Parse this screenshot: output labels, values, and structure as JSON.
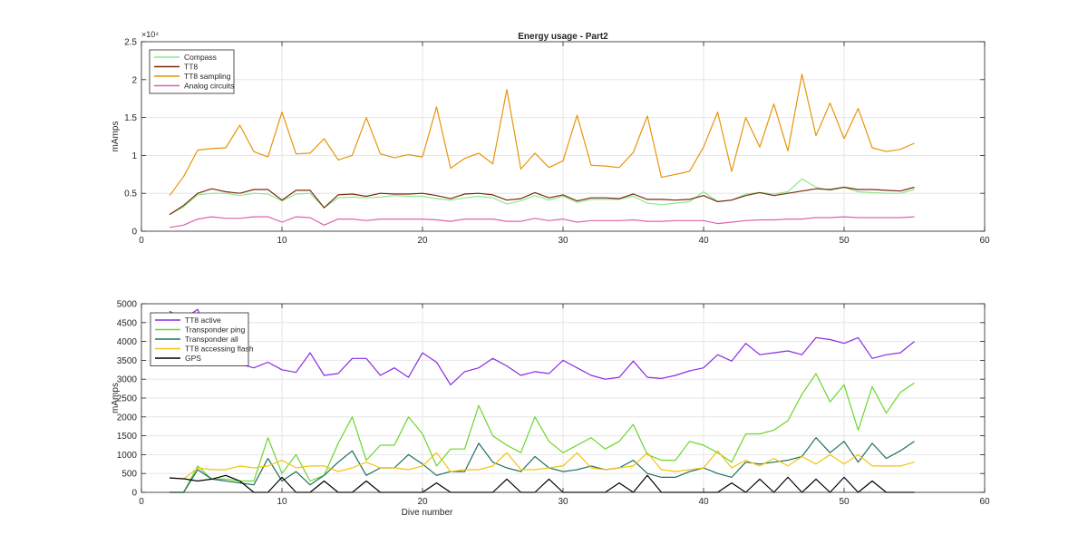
{
  "figure_title": "Energy usage - Part2",
  "chart_data": [
    {
      "type": "line",
      "title": "Energy usage - Part2",
      "xlabel": "",
      "ylabel": "mAmps",
      "xlim": [
        0,
        60
      ],
      "ylim": [
        0,
        25000
      ],
      "x_ticks": [
        0,
        10,
        20,
        30,
        40,
        50,
        60
      ],
      "y_ticks": [
        0,
        5000,
        10000,
        15000,
        20000,
        25000
      ],
      "y_tick_labels": [
        "0",
        "0.5",
        "1",
        "1.5",
        "2",
        "2.5"
      ],
      "y_exponent_label": "×10⁴",
      "grid": true,
      "legend_position": "top-left",
      "x": [
        2,
        3,
        4,
        5,
        6,
        7,
        8,
        9,
        10,
        11,
        12,
        13,
        14,
        15,
        16,
        17,
        18,
        19,
        20,
        21,
        22,
        23,
        24,
        25,
        26,
        27,
        28,
        29,
        30,
        31,
        32,
        33,
        34,
        35,
        36,
        37,
        38,
        39,
        40,
        41,
        42,
        43,
        44,
        45,
        46,
        47,
        48,
        49,
        50,
        51,
        52,
        53,
        54,
        55
      ],
      "series": [
        {
          "name": "Compass",
          "color": "#8ee88e",
          "values": [
            2200,
            3200,
            4800,
            5000,
            5000,
            4700,
            5000,
            4900,
            4000,
            4900,
            5000,
            3100,
            4400,
            4500,
            4400,
            4500,
            4700,
            4600,
            4600,
            4300,
            4100,
            4400,
            4600,
            4400,
            3600,
            4000,
            4700,
            4100,
            4600,
            3800,
            4200,
            4200,
            4200,
            4600,
            3700,
            3500,
            3700,
            3900,
            5200,
            3900,
            4100,
            4900,
            5100,
            4900,
            5200,
            6900,
            5800,
            5400,
            5800,
            5200,
            5100,
            5000,
            5000,
            5500
          ]
        },
        {
          "name": "TT8",
          "color": "#7a2a10",
          "values": [
            2200,
            3400,
            5000,
            5600,
            5200,
            5000,
            5500,
            5500,
            4100,
            5400,
            5400,
            3100,
            4800,
            4900,
            4600,
            5000,
            4900,
            4900,
            5000,
            4700,
            4300,
            4900,
            5000,
            4800,
            4100,
            4300,
            5100,
            4400,
            4800,
            4000,
            4400,
            4400,
            4300,
            4900,
            4200,
            4200,
            4100,
            4200,
            4700,
            3900,
            4100,
            4700,
            5100,
            4700,
            5000,
            5300,
            5600,
            5500,
            5800,
            5500,
            5500,
            5400,
            5300,
            5800
          ]
        },
        {
          "name": "TT8 sampling",
          "color": "#e8940a",
          "values": [
            4700,
            7200,
            10700,
            10900,
            11000,
            14000,
            10500,
            9800,
            15700,
            10200,
            10300,
            12200,
            9400,
            10000,
            15000,
            10200,
            9700,
            10100,
            9800,
            16400,
            8300,
            9600,
            10300,
            8900,
            18700,
            8200,
            10300,
            8400,
            9300,
            15300,
            8700,
            8600,
            8400,
            10400,
            15200,
            7100,
            7500,
            7900,
            11100,
            15700,
            7900,
            15000,
            11100,
            16800,
            10600,
            20700,
            12600,
            16900,
            12200,
            16200,
            11000,
            10500,
            10800,
            11600
          ]
        },
        {
          "name": "Analog circuits",
          "color": "#e060b0",
          "values": [
            500,
            800,
            1600,
            1900,
            1700,
            1700,
            1900,
            1900,
            1200,
            1900,
            1800,
            800,
            1600,
            1600,
            1400,
            1600,
            1600,
            1600,
            1600,
            1500,
            1300,
            1600,
            1600,
            1600,
            1300,
            1300,
            1700,
            1400,
            1600,
            1200,
            1400,
            1400,
            1400,
            1500,
            1300,
            1300,
            1400,
            1400,
            1400,
            1000,
            1200,
            1400,
            1500,
            1500,
            1600,
            1600,
            1800,
            1800,
            1900,
            1800,
            1800,
            1800,
            1800,
            1900
          ]
        }
      ]
    },
    {
      "type": "line",
      "title": "",
      "xlabel": "Dive number",
      "ylabel": "mAmps",
      "xlim": [
        0,
        60
      ],
      "ylim": [
        0,
        5000
      ],
      "x_ticks": [
        0,
        10,
        20,
        30,
        40,
        50,
        60
      ],
      "y_ticks": [
        0,
        500,
        1000,
        1500,
        2000,
        2500,
        3000,
        3500,
        4000,
        4500,
        5000
      ],
      "grid": true,
      "legend_position": "top-left",
      "x": [
        2,
        3,
        4,
        5,
        6,
        7,
        8,
        9,
        10,
        11,
        12,
        13,
        14,
        15,
        16,
        17,
        18,
        19,
        20,
        21,
        22,
        23,
        24,
        25,
        26,
        27,
        28,
        29,
        30,
        31,
        32,
        33,
        34,
        35,
        36,
        37,
        38,
        39,
        40,
        41,
        42,
        43,
        44,
        45,
        46,
        47,
        48,
        49,
        50,
        51,
        52,
        53,
        54,
        55
      ],
      "series": [
        {
          "name": "TT8 active",
          "color": "#8a2be2",
          "values": [
            4800,
            4600,
            4850,
            4000,
            3500,
            3400,
            3300,
            3450,
            3250,
            3180,
            3700,
            3100,
            3150,
            3550,
            3550,
            3100,
            3300,
            3050,
            3700,
            3450,
            2850,
            3200,
            3300,
            3550,
            3350,
            3100,
            3200,
            3150,
            3500,
            3300,
            3100,
            3000,
            3050,
            3480,
            3050,
            3020,
            3100,
            3220,
            3300,
            3650,
            3480,
            3950,
            3650,
            3700,
            3750,
            3650,
            4100,
            4050,
            3950,
            4100,
            3550,
            3650,
            3700,
            4000
          ]
        },
        {
          "name": "Transponder ping",
          "color": "#6ad62a",
          "values": [
            0,
            0,
            700,
            350,
            350,
            300,
            300,
            1450,
            500,
            1000,
            300,
            450,
            1300,
            2000,
            850,
            1250,
            1250,
            2000,
            1550,
            700,
            1150,
            1150,
            2300,
            1500,
            1250,
            1050,
            2000,
            1350,
            1050,
            1250,
            1450,
            1150,
            1350,
            1800,
            1000,
            850,
            850,
            1350,
            1250,
            1050,
            800,
            1550,
            1550,
            1650,
            1900,
            2600,
            3150,
            2400,
            2850,
            1650,
            2800,
            2100,
            2650,
            2900
          ]
        },
        {
          "name": "Transponder all",
          "color": "#1f6f5f",
          "values": [
            0,
            0,
            600,
            350,
            300,
            250,
            200,
            900,
            300,
            550,
            200,
            450,
            800,
            1100,
            450,
            650,
            650,
            1000,
            750,
            450,
            550,
            550,
            1300,
            800,
            650,
            550,
            950,
            650,
            550,
            600,
            700,
            600,
            650,
            850,
            500,
            400,
            400,
            550,
            650,
            500,
            400,
            800,
            750,
            800,
            850,
            950,
            1450,
            1050,
            1350,
            800,
            1300,
            900,
            1100,
            1350
          ]
        },
        {
          "name": "TT8 accessing flash",
          "color": "#f2c40d",
          "values": [
            400,
            350,
            650,
            600,
            600,
            700,
            650,
            700,
            850,
            650,
            700,
            700,
            550,
            650,
            800,
            650,
            650,
            600,
            700,
            1050,
            550,
            600,
            600,
            700,
            1050,
            600,
            600,
            650,
            700,
            1050,
            650,
            600,
            650,
            700,
            1050,
            600,
            550,
            600,
            650,
            1100,
            650,
            850,
            700,
            900,
            700,
            950,
            750,
            1000,
            750,
            1000,
            700,
            700,
            700,
            800
          ]
        },
        {
          "name": "GPS",
          "color": "#000000",
          "values": [
            380,
            360,
            300,
            350,
            450,
            300,
            0,
            0,
            400,
            0,
            0,
            300,
            0,
            0,
            300,
            0,
            0,
            0,
            0,
            250,
            0,
            0,
            0,
            0,
            350,
            0,
            0,
            350,
            0,
            0,
            0,
            0,
            250,
            0,
            450,
            0,
            0,
            0,
            0,
            0,
            250,
            0,
            350,
            0,
            400,
            0,
            350,
            0,
            400,
            0,
            300,
            0,
            0,
            0
          ]
        }
      ]
    }
  ]
}
